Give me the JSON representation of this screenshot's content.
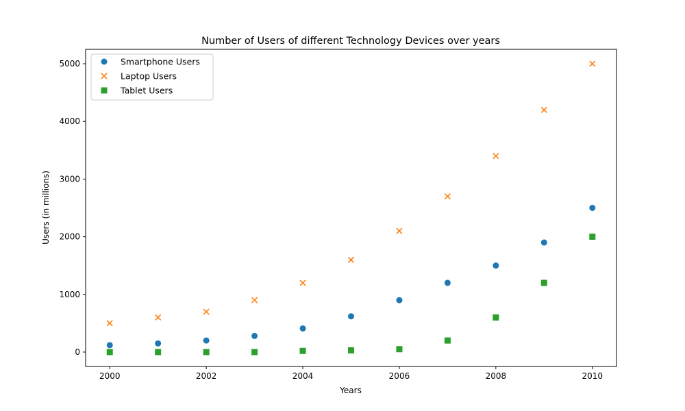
{
  "chart_data": {
    "type": "scatter",
    "title": "Number of Users of different Technology Devices over years",
    "xlabel": "Years",
    "ylabel": "Users (in millions)",
    "xlim": [
      1999.5,
      2010.5
    ],
    "ylim": [
      -250,
      5250
    ],
    "xticks": [
      2000,
      2002,
      2004,
      2006,
      2008,
      2010
    ],
    "yticks": [
      0,
      1000,
      2000,
      3000,
      4000,
      5000
    ],
    "legend_position": "upper-left",
    "grid": false,
    "x": [
      2000,
      2001,
      2002,
      2003,
      2004,
      2005,
      2006,
      2007,
      2008,
      2009,
      2010
    ],
    "series": [
      {
        "name": "Smartphone Users",
        "marker": "circle",
        "color": "#1f77b4",
        "values": [
          120,
          150,
          200,
          280,
          410,
          620,
          900,
          1200,
          1500,
          1900,
          2500
        ]
      },
      {
        "name": "Laptop Users",
        "marker": "x",
        "color": "#ff7f0e",
        "values": [
          500,
          600,
          700,
          900,
          1200,
          1600,
          2100,
          2700,
          3400,
          4200,
          5000
        ]
      },
      {
        "name": "Tablet Users",
        "marker": "square",
        "color": "#2ca02c",
        "values": [
          0,
          0,
          0,
          0,
          20,
          30,
          50,
          200,
          600,
          1200,
          2000
        ]
      }
    ]
  }
}
